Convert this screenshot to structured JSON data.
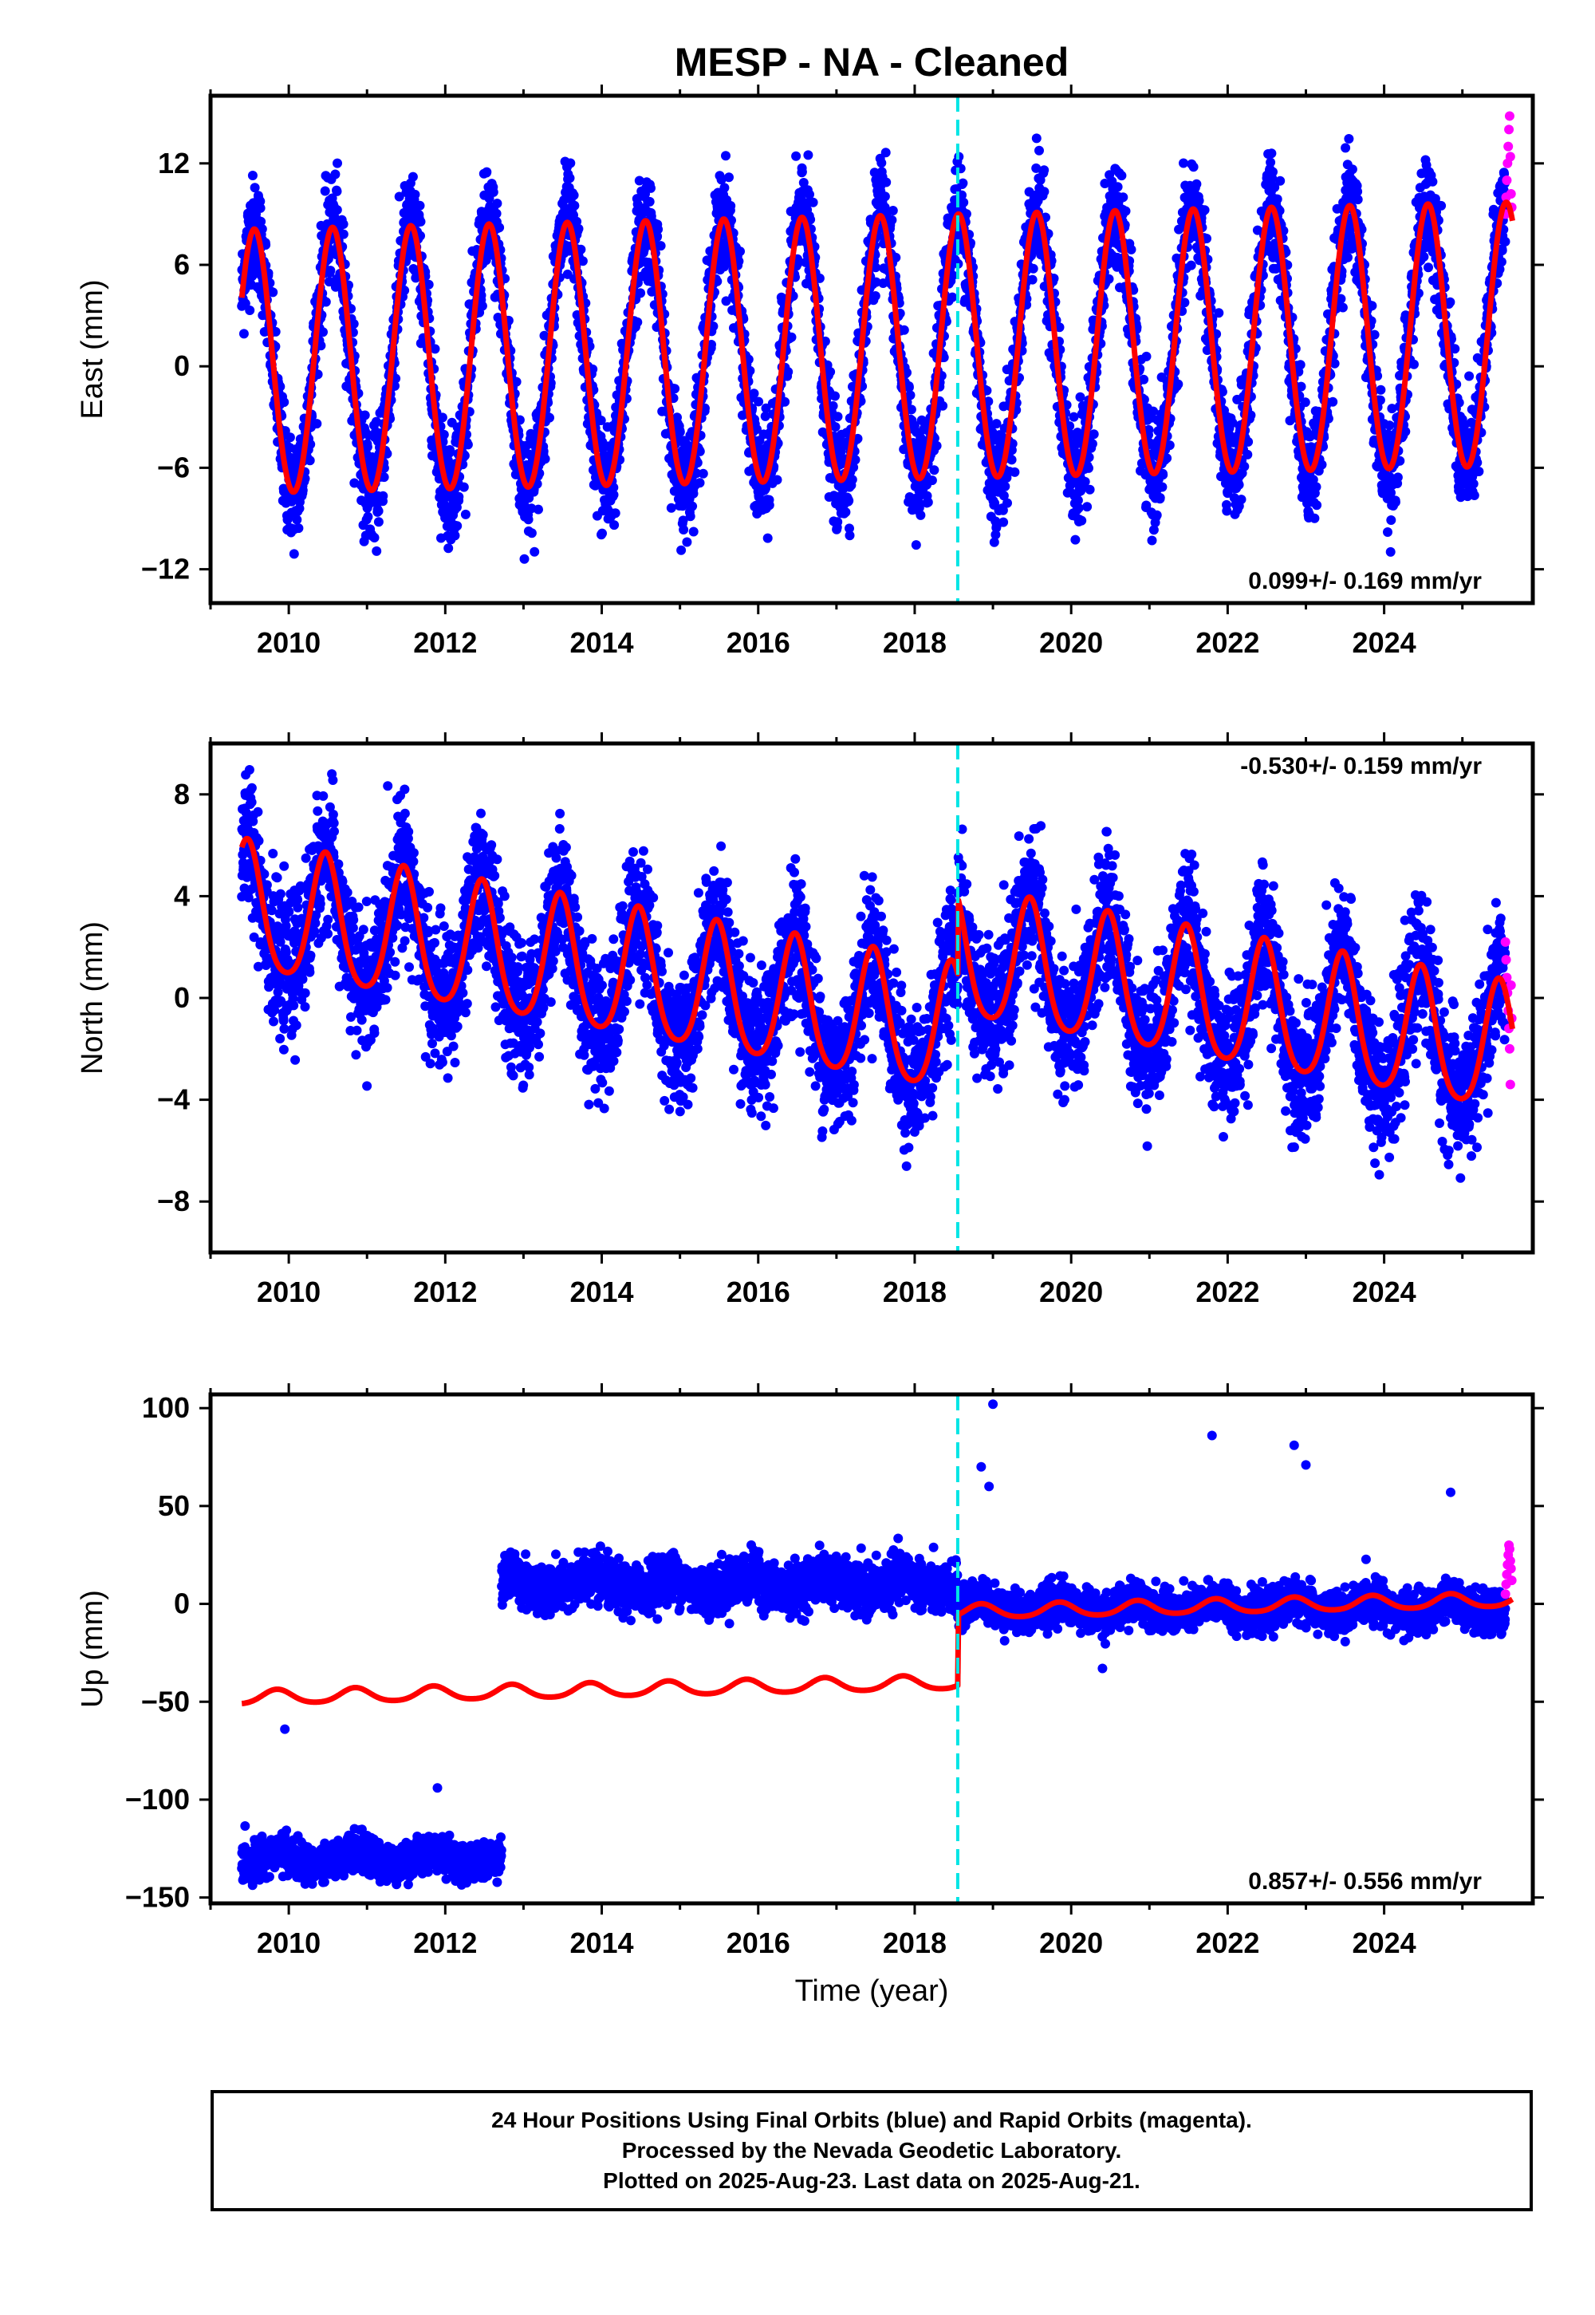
{
  "title": "MESP  - NA - Cleaned",
  "colors": {
    "final_orbits": "#0000ff",
    "rapid_orbits": "#ff00ff",
    "model": "#ff0000",
    "equipment_change": "#00e5e5"
  },
  "caption": {
    "line1": "24 Hour Positions Using Final Orbits (blue) and Rapid Orbits (magenta).",
    "line2": "Processed by the Nevada Geodetic Laboratory.",
    "line3": "Plotted on 2025-Aug-23. Last data on 2025-Aug-21."
  },
  "chart_data": [
    {
      "type": "scatter",
      "component": "East",
      "ylabel": "East (mm)",
      "xlabel": "",
      "xlim": [
        2009.0,
        2025.9
      ],
      "ylim": [
        -14,
        16
      ],
      "yticks": [
        -12,
        -6,
        0,
        6,
        12
      ],
      "xticks": [
        2010,
        2012,
        2014,
        2016,
        2018,
        2020,
        2022,
        2024
      ],
      "rate_label": "0.099+/- 0.169 mm/yr",
      "rate_position": "bottom-right",
      "discontinuity_x": 2018.55,
      "data_start": 2009.4,
      "data_end": 2025.64,
      "model": {
        "offset": 0.0,
        "rate": 0.099,
        "annual_amplitude": 7.8,
        "annual_phase_peak": 0.56,
        "semiannual_amplitude": 0.3,
        "step_at_discontinuity": 0.0
      },
      "scatter_std": 1.6,
      "rapid_orbits": {
        "x_start": 2025.55,
        "values": [
          9,
          10,
          11,
          12,
          13,
          14,
          14.8,
          12.4,
          10.2,
          9.4
        ]
      }
    },
    {
      "type": "scatter",
      "component": "North",
      "ylabel": "North (mm)",
      "xlabel": "",
      "xlim": [
        2009.0,
        2025.9
      ],
      "ylim": [
        -10,
        10
      ],
      "yticks": [
        -8,
        -4,
        0,
        4,
        8
      ],
      "xticks": [
        2010,
        2012,
        2014,
        2016,
        2018,
        2020,
        2022,
        2024
      ],
      "rate_label": "-0.530+/- 0.159 mm/yr",
      "rate_position": "top-right",
      "discontinuity_x": 2018.55,
      "data_start": 2009.4,
      "data_end": 2025.64,
      "model": {
        "offset": 3.4,
        "rate": -0.53,
        "annual_amplitude": 2.5,
        "annual_phase_peak": 0.47,
        "semiannual_amplitude": 0.4,
        "step_at_discontinuity": 3.0
      },
      "scatter_std": 1.3,
      "rapid_orbits": {
        "x_start": 2025.55,
        "values": [
          2.2,
          1.5,
          0.8,
          0.2,
          -0.5,
          -1.2,
          -2.0,
          -3.4,
          0.5,
          -0.8
        ]
      }
    },
    {
      "type": "scatter",
      "component": "Up",
      "ylabel": "Up (mm)",
      "xlabel": "Time (year)",
      "xlim": [
        2009.0,
        2025.9
      ],
      "ylim": [
        -153,
        107
      ],
      "yticks": [
        -150,
        -100,
        -50,
        0,
        50,
        100
      ],
      "xticks": [
        2010,
        2012,
        2014,
        2016,
        2018,
        2020,
        2022,
        2024
      ],
      "rate_label": "0.857+/- 0.556 mm/yr",
      "rate_position": "bottom-right",
      "discontinuity_x": 2018.55,
      "data_start": 2009.4,
      "data_end": 2025.64,
      "model": {
        "offset": -48.0,
        "rate": 0.857,
        "annual_amplitude": 3.5,
        "annual_phase_peak": 0.85,
        "semiannual_amplitude": 0.5,
        "step_at_discontinuity": 36.0
      },
      "observed_segments": [
        {
          "x_start": 2009.4,
          "x_end": 2012.72,
          "center": -130,
          "std": 4.5
        },
        {
          "x_start": 2012.72,
          "x_end": 2018.55,
          "center": 10,
          "std": 6
        },
        {
          "x_start": 2018.55,
          "x_end": 2025.64,
          "center": -2,
          "std": 5
        }
      ],
      "outliers": [
        [
          2009.95,
          -64
        ],
        [
          2011.9,
          -94
        ],
        [
          2018.85,
          70
        ],
        [
          2018.95,
          60
        ],
        [
          2019.0,
          102
        ],
        [
          2021.8,
          86
        ],
        [
          2022.85,
          81
        ],
        [
          2023.0,
          71
        ],
        [
          2024.85,
          57
        ],
        [
          2020.4,
          -33
        ]
      ],
      "rapid_orbits": {
        "x_start": 2025.55,
        "values": [
          5,
          10,
          15,
          20,
          25,
          30,
          28,
          22,
          18,
          12
        ]
      }
    }
  ]
}
